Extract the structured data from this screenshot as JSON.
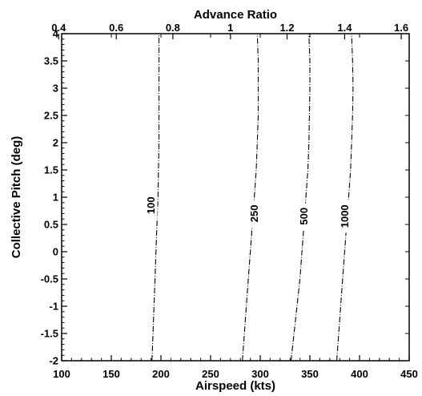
{
  "chart_data": {
    "type": "line",
    "title": "",
    "xlabel": "Airspeed (kts)",
    "x2label": "Advance Ratio",
    "ylabel": "Collective Pitch (deg)",
    "xlim": [
      100,
      450
    ],
    "ylim": [
      -2,
      4
    ],
    "x_ticks": [
      "100",
      "150",
      "200",
      "250",
      "300",
      "350",
      "400",
      "450"
    ],
    "x_tick_values": [
      100,
      150,
      200,
      250,
      300,
      350,
      400,
      450
    ],
    "x2_ticks": [
      "0.4",
      "0.6",
      "0.8",
      "1",
      "1.2",
      "1.4",
      "1.6"
    ],
    "x2_tick_values": [
      97,
      155,
      212,
      270,
      327,
      385,
      442
    ],
    "y_ticks": [
      "-2",
      "-1.5",
      "-1",
      "-0.5",
      "0",
      "0.5",
      "1",
      "1.5",
      "2",
      "2.5",
      "3",
      "3.5",
      "4"
    ],
    "y_tick_values": [
      -2,
      -1.5,
      -1,
      -0.5,
      0,
      0.5,
      1,
      1.5,
      2,
      2.5,
      3,
      3.5,
      4
    ],
    "grid": false,
    "line_color": "#000000",
    "series": [
      {
        "name": "100",
        "label_at": {
          "x": 190,
          "y": 0.85
        },
        "points": [
          {
            "x": 191,
            "y": -2
          },
          {
            "x": 192,
            "y": -1.5
          },
          {
            "x": 193,
            "y": -1
          },
          {
            "x": 194,
            "y": -0.5
          },
          {
            "x": 195,
            "y": 0
          },
          {
            "x": 196,
            "y": 0.5
          },
          {
            "x": 197,
            "y": 1
          },
          {
            "x": 197.5,
            "y": 1.5
          },
          {
            "x": 198,
            "y": 2
          },
          {
            "x": 198,
            "y": 2.5
          },
          {
            "x": 198,
            "y": 3
          },
          {
            "x": 198,
            "y": 3.5
          },
          {
            "x": 198,
            "y": 4
          }
        ]
      },
      {
        "name": "250",
        "label_at": {
          "x": 294,
          "y": 0.7
        },
        "points": [
          {
            "x": 282,
            "y": -2
          },
          {
            "x": 284,
            "y": -1.5
          },
          {
            "x": 286,
            "y": -1
          },
          {
            "x": 288,
            "y": -0.5
          },
          {
            "x": 290,
            "y": 0
          },
          {
            "x": 292,
            "y": 0.5
          },
          {
            "x": 294,
            "y": 1
          },
          {
            "x": 296,
            "y": 1.5
          },
          {
            "x": 297,
            "y": 2
          },
          {
            "x": 298,
            "y": 2.5
          },
          {
            "x": 298,
            "y": 3
          },
          {
            "x": 298,
            "y": 3.5
          },
          {
            "x": 297,
            "y": 4
          }
        ]
      },
      {
        "name": "500",
        "label_at": {
          "x": 344,
          "y": 0.65
        },
        "points": [
          {
            "x": 331,
            "y": -2
          },
          {
            "x": 334,
            "y": -1.5
          },
          {
            "x": 337,
            "y": -1
          },
          {
            "x": 340,
            "y": -0.5
          },
          {
            "x": 342,
            "y": 0
          },
          {
            "x": 344,
            "y": 0.5
          },
          {
            "x": 346,
            "y": 1
          },
          {
            "x": 348,
            "y": 1.5
          },
          {
            "x": 349,
            "y": 2
          },
          {
            "x": 349.5,
            "y": 2.5
          },
          {
            "x": 350,
            "y": 3
          },
          {
            "x": 350,
            "y": 3.5
          },
          {
            "x": 349,
            "y": 4
          }
        ]
      },
      {
        "name": "1000",
        "label_at": {
          "x": 385,
          "y": 0.65
        },
        "points": [
          {
            "x": 377,
            "y": -2
          },
          {
            "x": 379,
            "y": -1.5
          },
          {
            "x": 381,
            "y": -1
          },
          {
            "x": 383,
            "y": -0.5
          },
          {
            "x": 385,
            "y": 0
          },
          {
            "x": 387,
            "y": 0.5
          },
          {
            "x": 389,
            "y": 1
          },
          {
            "x": 391,
            "y": 1.5
          },
          {
            "x": 392,
            "y": 2
          },
          {
            "x": 393,
            "y": 2.5
          },
          {
            "x": 393.5,
            "y": 3
          },
          {
            "x": 393,
            "y": 3.5
          },
          {
            "x": 392,
            "y": 4
          }
        ]
      }
    ]
  }
}
